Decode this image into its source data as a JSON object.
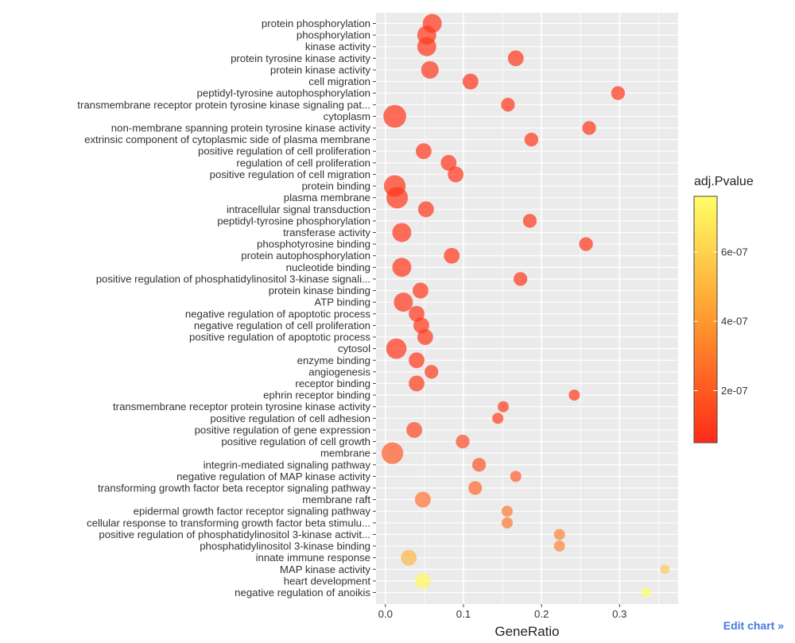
{
  "chart_data": {
    "type": "scatter",
    "xlabel": "GeneRatio",
    "ylabel": "",
    "xlim": [
      -0.012,
      0.375
    ],
    "x_ticks": [
      0.0,
      0.1,
      0.2,
      0.3
    ],
    "x_tick_labels": [
      "0.0",
      "0.1",
      "0.2",
      "0.3"
    ],
    "grid": true,
    "legend": {
      "title": "adj.Pvalue",
      "position": "right",
      "type": "colorbar",
      "range": [
        5e-08,
        7.6e-07
      ],
      "ticks": [
        2e-07,
        4e-07,
        6e-07
      ],
      "tick_labels": [
        "2e-07",
        "4e-07",
        "6e-07"
      ],
      "colors": [
        "#ff2a1a",
        "#ffff66"
      ]
    },
    "points": [
      {
        "term": "protein phosphorylation",
        "x": 0.06,
        "size": 5,
        "p": 1e-07
      },
      {
        "term": "phosphorylation",
        "x": 0.053,
        "size": 5,
        "p": 1e-07
      },
      {
        "term": "kinase activity",
        "x": 0.053,
        "size": 5,
        "p": 1e-07
      },
      {
        "term": "protein tyrosine kinase activity",
        "x": 0.167,
        "size": 3,
        "p": 1e-07
      },
      {
        "term": "protein kinase activity",
        "x": 0.057,
        "size": 4,
        "p": 1e-07
      },
      {
        "term": "cell migration",
        "x": 0.109,
        "size": 3,
        "p": 1e-07
      },
      {
        "term": "peptidyl-tyrosine autophosphorylation",
        "x": 0.298,
        "size": 2,
        "p": 1e-07
      },
      {
        "term": "transmembrane receptor protein tyrosine kinase signaling pat...",
        "x": 0.157,
        "size": 2,
        "p": 1e-07
      },
      {
        "term": "cytoplasm",
        "x": 0.012,
        "size": 8,
        "p": 1e-07
      },
      {
        "term": "non-membrane spanning protein tyrosine kinase activity",
        "x": 0.261,
        "size": 2,
        "p": 1e-07
      },
      {
        "term": "extrinsic component of cytoplasmic side of plasma membrane",
        "x": 0.187,
        "size": 2,
        "p": 1e-07
      },
      {
        "term": "positive regulation of cell proliferation",
        "x": 0.049,
        "size": 3,
        "p": 1e-07
      },
      {
        "term": "regulation of cell proliferation",
        "x": 0.081,
        "size": 3,
        "p": 1e-07
      },
      {
        "term": "positive regulation of cell migration",
        "x": 0.09,
        "size": 3,
        "p": 1e-07
      },
      {
        "term": "protein binding",
        "x": 0.012,
        "size": 7,
        "p": 1e-07
      },
      {
        "term": "plasma membrane",
        "x": 0.015,
        "size": 7,
        "p": 1e-07
      },
      {
        "term": "intracellular signal transduction",
        "x": 0.052,
        "size": 3,
        "p": 1e-07
      },
      {
        "term": "peptidyl-tyrosine phosphorylation",
        "x": 0.185,
        "size": 2,
        "p": 1e-07
      },
      {
        "term": "transferase activity",
        "x": 0.021,
        "size": 5,
        "p": 1e-07
      },
      {
        "term": "phosphotyrosine binding",
        "x": 0.257,
        "size": 2,
        "p": 1e-07
      },
      {
        "term": "protein autophosphorylation",
        "x": 0.085,
        "size": 3,
        "p": 1e-07
      },
      {
        "term": "nucleotide binding",
        "x": 0.021,
        "size": 5,
        "p": 1e-07
      },
      {
        "term": "positive regulation of phosphatidylinositol 3-kinase signali...",
        "x": 0.173,
        "size": 2,
        "p": 1e-07
      },
      {
        "term": "protein kinase binding",
        "x": 0.045,
        "size": 3,
        "p": 1e-07
      },
      {
        "term": "ATP binding",
        "x": 0.023,
        "size": 5,
        "p": 1e-07
      },
      {
        "term": "negative regulation of apoptotic process",
        "x": 0.04,
        "size": 3,
        "p": 1e-07
      },
      {
        "term": "negative regulation of cell proliferation",
        "x": 0.046,
        "size": 3,
        "p": 1e-07
      },
      {
        "term": "positive regulation of apoptotic process",
        "x": 0.051,
        "size": 3,
        "p": 1e-07
      },
      {
        "term": "cytosol",
        "x": 0.014,
        "size": 6,
        "p": 1e-07
      },
      {
        "term": "enzyme binding",
        "x": 0.04,
        "size": 3,
        "p": 1e-07
      },
      {
        "term": "angiogenesis",
        "x": 0.059,
        "size": 2,
        "p": 1.2e-07
      },
      {
        "term": "receptor binding",
        "x": 0.04,
        "size": 3,
        "p": 1.2e-07
      },
      {
        "term": "ephrin receptor binding",
        "x": 0.242,
        "size": 1,
        "p": 1.2e-07
      },
      {
        "term": "transmembrane receptor protein tyrosine kinase activity",
        "x": 0.151,
        "size": 1,
        "p": 1.2e-07
      },
      {
        "term": "positive regulation of cell adhesion",
        "x": 0.144,
        "size": 1,
        "p": 1.3e-07
      },
      {
        "term": "positive regulation of gene expression",
        "x": 0.037,
        "size": 3,
        "p": 1.5e-07
      },
      {
        "term": "positive regulation of cell growth",
        "x": 0.099,
        "size": 2,
        "p": 1.8e-07
      },
      {
        "term": "membrane",
        "x": 0.009,
        "size": 7,
        "p": 2.2e-07
      },
      {
        "term": "integrin-mediated signaling pathway",
        "x": 0.12,
        "size": 2,
        "p": 2e-07
      },
      {
        "term": "negative regulation of MAP kinase activity",
        "x": 0.167,
        "size": 1,
        "p": 2.3e-07
      },
      {
        "term": "transforming growth factor beta receptor signaling pathway",
        "x": 0.115,
        "size": 2,
        "p": 2.6e-07
      },
      {
        "term": "membrane raft",
        "x": 0.048,
        "size": 3,
        "p": 3e-07
      },
      {
        "term": "epidermal growth factor receptor signaling pathway",
        "x": 0.156,
        "size": 1,
        "p": 3.1e-07
      },
      {
        "term": "cellular response to transforming growth factor beta stimulu...",
        "x": 0.156,
        "size": 1,
        "p": 3.1e-07
      },
      {
        "term": "positive regulation of phosphatidylinositol 3-kinase activit...",
        "x": 0.223,
        "size": 1,
        "p": 3.6e-07
      },
      {
        "term": "phosphatidylinositol 3-kinase binding",
        "x": 0.223,
        "size": 1,
        "p": 3.6e-07
      },
      {
        "term": "innate immune response",
        "x": 0.03,
        "size": 3,
        "p": 5.2e-07
      },
      {
        "term": "MAP kinase activity",
        "x": 0.358,
        "size": 0.5,
        "p": 5.8e-07
      },
      {
        "term": "heart development",
        "x": 0.048,
        "size": 3,
        "p": 7.3e-07
      },
      {
        "term": "negative regulation of anoikis",
        "x": 0.334,
        "size": 0.5,
        "p": 7.6e-07
      }
    ]
  },
  "edit_link": "Edit chart »"
}
